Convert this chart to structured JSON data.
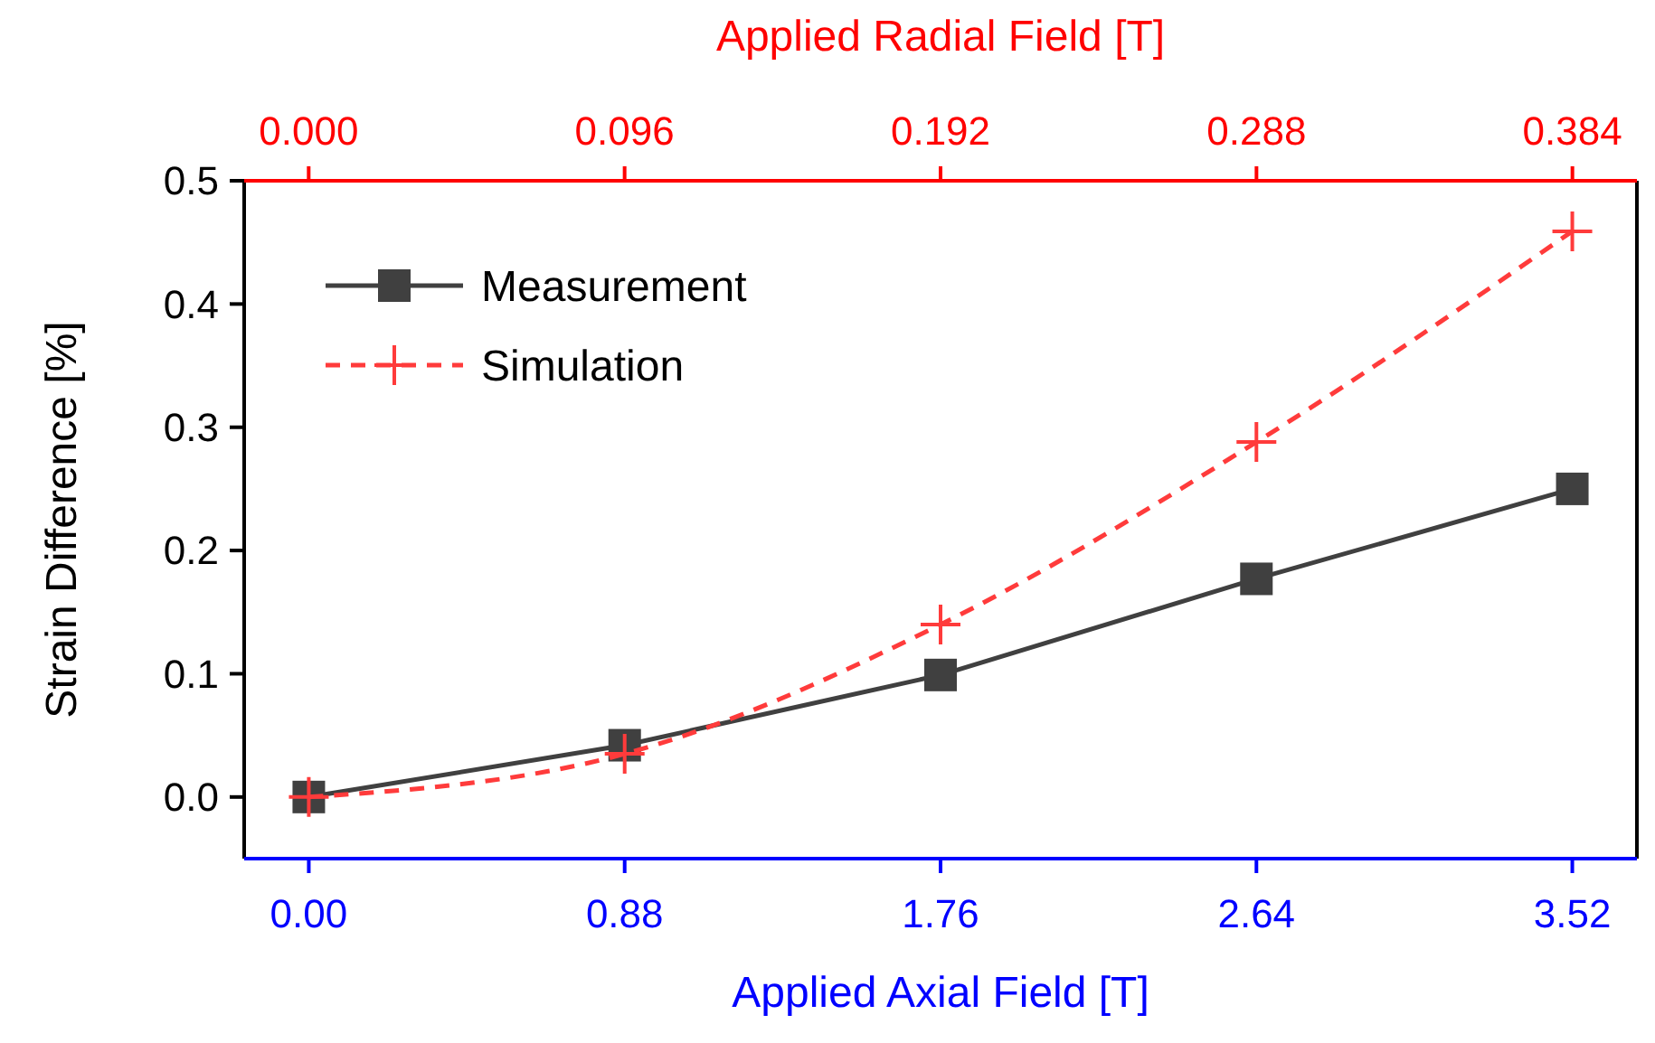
{
  "chart_data": {
    "type": "line",
    "xlabel": "Applied Axial Field [T]",
    "x2label": "Applied Radial Field [T]",
    "ylabel": "Strain Difference [%]",
    "x": [
      0,
      0.88,
      1.76,
      2.64,
      3.52
    ],
    "series": [
      {
        "name": "Measurement",
        "color": "#404040",
        "marker": "square",
        "line_style": "solid",
        "values": [
          0,
          0.042,
          0.099,
          0.177,
          0.25
        ]
      },
      {
        "name": "Simulation",
        "color": "#ff3b3b",
        "marker": "cross",
        "line_style": "dashed",
        "values": [
          0,
          0.035,
          0.14,
          0.288,
          0.459
        ]
      }
    ],
    "xlim": [
      -0.18,
      3.7
    ],
    "xticks": [
      {
        "value": 0,
        "label": "0.00"
      },
      0.88,
      1.76,
      2.64,
      3.52
    ],
    "x2lim": [
      -0.0196,
      0.4036
    ],
    "x2ticks": [
      {
        "value": 0,
        "label": "0.000"
      },
      0.096,
      0.192,
      0.288,
      0.384
    ],
    "ylim": [
      -0.05,
      0.5
    ],
    "yticks": [
      {
        "value": 0,
        "label": "0.0"
      },
      0.1,
      0.2,
      0.3,
      0.4,
      0.5
    ],
    "grid": false,
    "legend": "top left"
  }
}
